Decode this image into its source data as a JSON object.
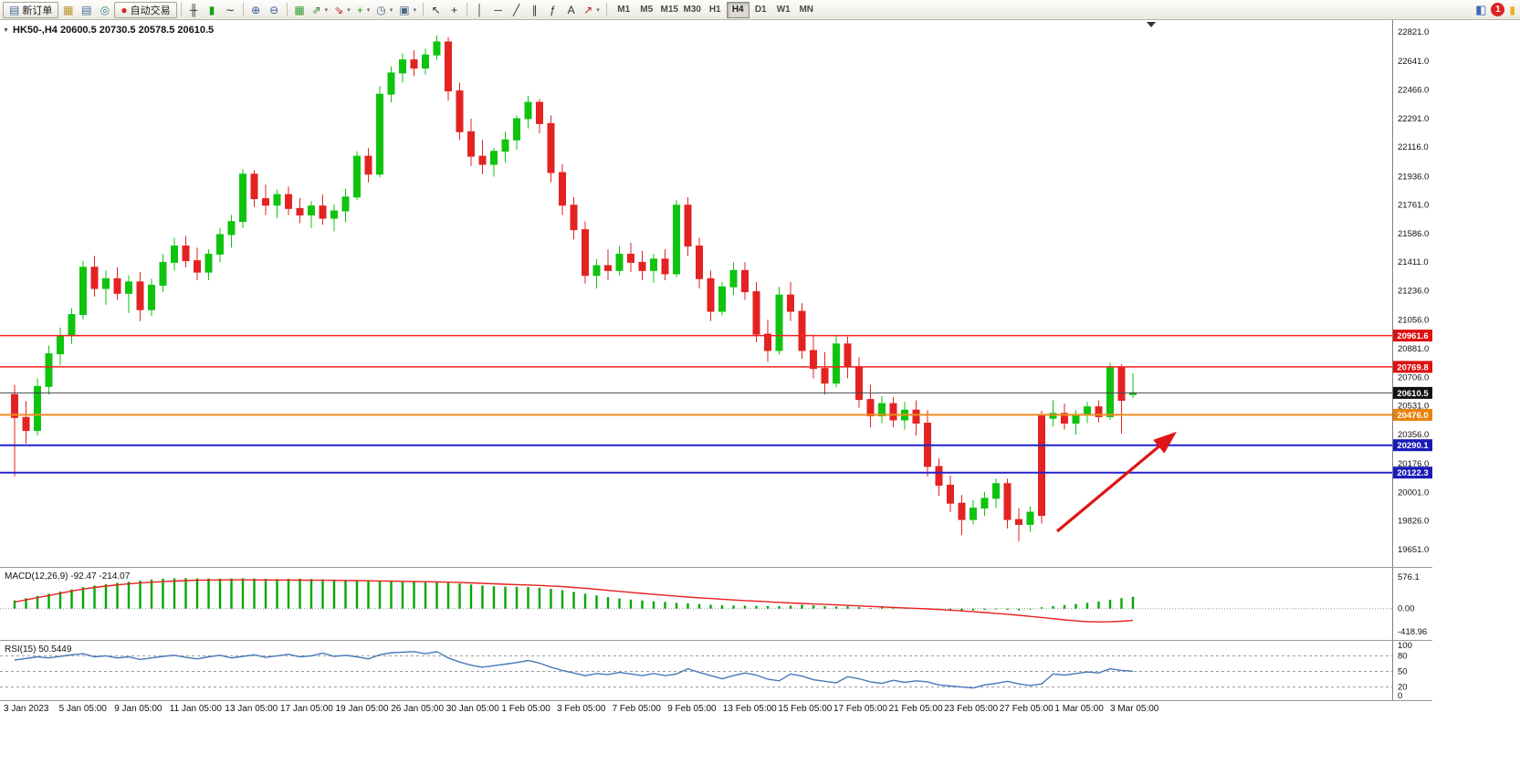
{
  "toolbar": {
    "new_order_label": "新订单",
    "items": [
      {
        "name": "market-watch-icon",
        "glyph": "▦",
        "color": "#b9952c"
      },
      {
        "name": "data-window-icon",
        "glyph": "▤",
        "color": "#44699e"
      },
      {
        "name": "navigator-icon",
        "glyph": "◎",
        "color": "#2e8b8b"
      },
      {
        "name": "autotrade-button",
        "glyph": "●",
        "color": "#d42222",
        "label": "自动交易"
      },
      {
        "sep": true
      },
      {
        "name": "bar-chart-icon",
        "glyph": "╫",
        "color": "#333333"
      },
      {
        "name": "candlestick-chart-icon",
        "glyph": "▮",
        "color": "#18a018"
      },
      {
        "name": "line-chart-icon",
        "glyph": "∼",
        "color": "#333333"
      },
      {
        "sep": true
      },
      {
        "name": "zoom-in-icon",
        "glyph": "⊕",
        "color": "#33589e"
      },
      {
        "name": "zoom-out-icon",
        "glyph": "⊖",
        "color": "#33589e"
      },
      {
        "sep": true
      },
      {
        "name": "tile-windows-icon",
        "glyph": "▦",
        "color": "#2f9e2f"
      },
      {
        "name": "indicator-rise-icon",
        "glyph": "⇗",
        "color": "#1f7a1f",
        "dropdown": true
      },
      {
        "name": "indicator-fall-icon",
        "glyph": "⇘",
        "color": "#b32020",
        "dropdown": true
      },
      {
        "name": "add-indicator-icon",
        "glyph": "+",
        "color": "#18a018",
        "dropdown": true
      },
      {
        "name": "period-icon",
        "glyph": "◷",
        "color": "#4a6a8a",
        "dropdown": true
      },
      {
        "name": "template-icon",
        "glyph": "▣",
        "color": "#4a6a8a",
        "dropdown": true
      },
      {
        "sep": true
      },
      {
        "name": "cursor-icon",
        "glyph": "↖",
        "color": "#333333"
      },
      {
        "name": "crosshair-icon",
        "glyph": "+",
        "color": "#333333"
      },
      {
        "sep": true
      },
      {
        "name": "vertical-line-icon",
        "glyph": "│",
        "color": "#333333"
      },
      {
        "name": "horizontal-line-icon",
        "glyph": "─",
        "color": "#333333"
      },
      {
        "name": "trendline-icon",
        "glyph": "╱",
        "color": "#333333"
      },
      {
        "name": "channel-icon",
        "glyph": "∥",
        "color": "#333333"
      },
      {
        "name": "fibonacci-icon",
        "glyph": "ƒ",
        "color": "#333333"
      },
      {
        "name": "text-icon",
        "glyph": "A",
        "color": "#333333"
      },
      {
        "name": "arrows-icon",
        "glyph": "↗",
        "color": "#b32020",
        "dropdown": true
      },
      {
        "sep": true
      }
    ],
    "timeframes": [
      "M1",
      "M5",
      "M15",
      "M30",
      "H1",
      "H4",
      "D1",
      "W1",
      "MN"
    ],
    "active_timeframe": "H4",
    "notification_count": "1"
  },
  "chart": {
    "header_symbol": "HK50-,H4",
    "header_ohlc": "20600.5 20730.5 20578.5 20610.5",
    "price_axis": [
      "22821.0",
      "22641.0",
      "22466.0",
      "22291.0",
      "22116.0",
      "21936.0",
      "21761.0",
      "21586.0",
      "21411.0",
      "21236.0",
      "21056.0",
      "20881.0",
      "20706.0",
      "20531.0",
      "20356.0",
      "20176.0",
      "20001.0",
      "19826.0",
      "19651.0"
    ],
    "hlines": [
      {
        "price": 20961.6,
        "label": "20961.6",
        "line": "#f42020",
        "badge": "#dd1111",
        "width": 1.5
      },
      {
        "price": 20769.8,
        "label": "20769.8",
        "line": "#f42020",
        "badge": "#dd1111",
        "width": 1.5
      },
      {
        "price": 20610.5,
        "label": "20610.5",
        "line": "#444444",
        "badge": "#111111",
        "width": 1
      },
      {
        "price": 20476.0,
        "label": "20476.0",
        "line": "#f08c1e",
        "badge": "#e8820a",
        "width": 2
      },
      {
        "price": 20290.1,
        "label": "20290.1",
        "line": "#2222cc",
        "badge": "#1a1ab8",
        "width": 2
      },
      {
        "price": 20122.3,
        "label": "20122.3",
        "line": "#2222cc",
        "badge": "#1a1ab8",
        "width": 2
      }
    ],
    "annotations": [
      {
        "type": "arrow",
        "color": "#e01414",
        "from": [
          1158,
          560
        ],
        "to": [
          1284,
          455
        ]
      }
    ]
  },
  "chart_data": {
    "type": "candlestick",
    "symbol": "HK50-",
    "timeframe": "H4",
    "open": 20600.5,
    "high": 20730.5,
    "low": 20578.5,
    "close": 20610.5,
    "up_color": "#0fc40f",
    "down_color": "#e42222",
    "candles": [
      [
        20600,
        20660,
        20100,
        20460
      ],
      [
        20460,
        20560,
        20300,
        20380
      ],
      [
        20380,
        20700,
        20350,
        20650
      ],
      [
        20650,
        20900,
        20600,
        20850
      ],
      [
        20850,
        21010,
        20780,
        20960
      ],
      [
        20960,
        21130,
        20910,
        21090
      ],
      [
        21090,
        21420,
        21060,
        21380
      ],
      [
        21380,
        21450,
        21200,
        21250
      ],
      [
        21250,
        21360,
        21150,
        21310
      ],
      [
        21310,
        21380,
        21180,
        21220
      ],
      [
        21220,
        21330,
        21100,
        21290
      ],
      [
        21290,
        21350,
        21050,
        21120
      ],
      [
        21120,
        21310,
        21080,
        21270
      ],
      [
        21270,
        21460,
        21230,
        21410
      ],
      [
        21410,
        21560,
        21360,
        21510
      ],
      [
        21510,
        21570,
        21380,
        21420
      ],
      [
        21420,
        21500,
        21300,
        21350
      ],
      [
        21350,
        21490,
        21300,
        21460
      ],
      [
        21460,
        21620,
        21410,
        21580
      ],
      [
        21580,
        21700,
        21500,
        21660
      ],
      [
        21660,
        21980,
        21620,
        21950
      ],
      [
        21950,
        21975,
        21750,
        21800
      ],
      [
        21800,
        21885,
        21700,
        21760
      ],
      [
        21760,
        21855,
        21680,
        21825
      ],
      [
        21825,
        21875,
        21700,
        21740
      ],
      [
        21740,
        21805,
        21650,
        21700
      ],
      [
        21700,
        21785,
        21620,
        21755
      ],
      [
        21755,
        21825,
        21640,
        21680
      ],
      [
        21680,
        21765,
        21600,
        21725
      ],
      [
        21725,
        21860,
        21655,
        21810
      ],
      [
        21810,
        22090,
        21790,
        22060
      ],
      [
        22060,
        22110,
        21900,
        21950
      ],
      [
        21950,
        22490,
        21930,
        22440
      ],
      [
        22440,
        22610,
        22390,
        22570
      ],
      [
        22570,
        22690,
        22510,
        22650
      ],
      [
        22650,
        22710,
        22550,
        22600
      ],
      [
        22600,
        22720,
        22560,
        22680
      ],
      [
        22680,
        22800,
        22650,
        22760
      ],
      [
        22760,
        22790,
        22400,
        22460
      ],
      [
        22460,
        22510,
        22160,
        22210
      ],
      [
        22210,
        22290,
        22000,
        22060
      ],
      [
        22060,
        22160,
        21950,
        22010
      ],
      [
        22010,
        22110,
        21935,
        22090
      ],
      [
        22090,
        22210,
        22020,
        22160
      ],
      [
        22160,
        22310,
        22100,
        22290
      ],
      [
        22290,
        22430,
        22230,
        22390
      ],
      [
        22390,
        22410,
        22200,
        22260
      ],
      [
        22260,
        22310,
        21900,
        21960
      ],
      [
        21960,
        22010,
        21700,
        21760
      ],
      [
        21760,
        21810,
        21550,
        21610
      ],
      [
        21610,
        21660,
        21280,
        21330
      ],
      [
        21330,
        21430,
        21250,
        21390
      ],
      [
        21390,
        21490,
        21300,
        21360
      ],
      [
        21360,
        21510,
        21330,
        21460
      ],
      [
        21460,
        21530,
        21350,
        21410
      ],
      [
        21410,
        21480,
        21300,
        21360
      ],
      [
        21360,
        21460,
        21285,
        21430
      ],
      [
        21430,
        21490,
        21300,
        21340
      ],
      [
        21340,
        21790,
        21320,
        21760
      ],
      [
        21760,
        21810,
        21450,
        21510
      ],
      [
        21510,
        21560,
        21250,
        21310
      ],
      [
        21310,
        21360,
        21050,
        21110
      ],
      [
        21110,
        21290,
        21085,
        21260
      ],
      [
        21260,
        21410,
        21210,
        21360
      ],
      [
        21360,
        21410,
        21180,
        21230
      ],
      [
        21230,
        21290,
        20920,
        20970
      ],
      [
        20970,
        21060,
        20800,
        20870
      ],
      [
        20870,
        21260,
        20845,
        21210
      ],
      [
        21210,
        21290,
        21050,
        21110
      ],
      [
        21110,
        21160,
        20820,
        20870
      ],
      [
        20870,
        20960,
        20700,
        20760
      ],
      [
        20760,
        20860,
        20600,
        20670
      ],
      [
        20670,
        20960,
        20645,
        20910
      ],
      [
        20910,
        20955,
        20700,
        20770
      ],
      [
        20770,
        20830,
        20520,
        20570
      ],
      [
        20570,
        20660,
        20400,
        20470
      ],
      [
        20470,
        20590,
        20425,
        20545
      ],
      [
        20545,
        20585,
        20400,
        20445
      ],
      [
        20445,
        20555,
        20385,
        20505
      ],
      [
        20505,
        20565,
        20350,
        20425
      ],
      [
        20425,
        20505,
        20100,
        20160
      ],
      [
        20160,
        20210,
        19980,
        20045
      ],
      [
        20045,
        20105,
        19880,
        19935
      ],
      [
        19935,
        19985,
        19740,
        19835
      ],
      [
        19835,
        19955,
        19805,
        19905
      ],
      [
        19905,
        20005,
        19855,
        19965
      ],
      [
        19965,
        20085,
        19905,
        20055
      ],
      [
        20055,
        20085,
        19780,
        19835
      ],
      [
        19835,
        19905,
        19700,
        19805
      ],
      [
        19805,
        19915,
        19760,
        19880
      ],
      [
        20470,
        20500,
        19810,
        19860
      ],
      [
        20455,
        20565,
        20405,
        20485
      ],
      [
        20485,
        20545,
        20385,
        20425
      ],
      [
        20425,
        20505,
        20355,
        20475
      ],
      [
        20475,
        20555,
        20425,
        20525
      ],
      [
        20525,
        20565,
        20430,
        20465
      ],
      [
        20465,
        20795,
        20445,
        20765
      ],
      [
        20765,
        20785,
        20360,
        20565
      ],
      [
        20600.5,
        20730.5,
        20578.5,
        20610.5
      ]
    ]
  },
  "macd": {
    "label": "MACD(12,26,9)",
    "values": "-92.47 -214.07",
    "axis": [
      {
        "v": 576.1,
        "label": "576.1"
      },
      {
        "v": 0,
        "label": "0.00"
      },
      {
        "v": -418.96,
        "label": "-418.96"
      }
    ],
    "hist_color": "#00a800",
    "signal_color": "#e82020",
    "histogram": [
      150,
      190,
      230,
      270,
      310,
      350,
      390,
      420,
      445,
      470,
      490,
      510,
      530,
      545,
      552,
      555,
      552,
      548,
      545,
      548,
      552,
      548,
      542,
      538,
      540,
      545,
      538,
      532,
      528,
      524,
      518,
      512,
      508,
      504,
      500,
      494,
      488,
      480,
      470,
      455,
      438,
      420,
      408,
      400,
      396,
      392,
      380,
      360,
      335,
      305,
      272,
      240,
      210,
      185,
      165,
      150,
      135,
      120,
      105,
      95,
      85,
      70,
      62,
      58,
      55,
      52,
      48,
      45,
      55,
      70,
      60,
      45,
      38,
      42,
      30,
      12,
      22,
      32,
      20,
      5,
      -12,
      -22,
      -30,
      -38,
      -30,
      -22,
      -12,
      -20,
      -30,
      -15,
      25,
      45,
      65,
      85,
      105,
      130,
      160,
      190,
      215
    ],
    "signal": [
      120,
      160,
      200,
      240,
      280,
      320,
      355,
      385,
      410,
      432,
      450,
      466,
      480,
      492,
      502,
      510,
      516,
      520,
      522,
      523,
      523,
      522,
      521,
      520,
      519,
      518,
      517,
      516,
      514,
      512,
      509,
      506,
      503,
      500,
      497,
      494,
      490,
      486,
      481,
      475,
      468,
      460,
      452,
      444,
      437,
      430,
      422,
      412,
      400,
      386,
      370,
      352,
      333,
      314,
      295,
      277,
      259,
      242,
      226,
      211,
      197,
      184,
      171,
      159,
      147,
      136,
      125,
      114,
      104,
      95,
      86,
      77,
      68,
      59,
      50,
      41,
      32,
      23,
      14,
      5,
      -5,
      -16,
      -28,
      -41,
      -55,
      -70,
      -86,
      -103,
      -121,
      -140,
      -160,
      -182,
      -204,
      -222,
      -236,
      -242,
      -238,
      -228,
      -214
    ]
  },
  "rsi": {
    "label": "RSI(15)",
    "value": "50.5449",
    "axis": [
      {
        "v": 100,
        "label": "100"
      },
      {
        "v": 80,
        "label": "80",
        "dashed": true
      },
      {
        "v": 50,
        "label": "50",
        "dashed": true
      },
      {
        "v": 20,
        "label": "20",
        "dashed": true
      },
      {
        "v": 0,
        "label": "0"
      }
    ],
    "line_color": "#4878b8",
    "values": [
      72,
      75,
      78,
      76,
      79,
      82,
      84,
      78,
      80,
      76,
      78,
      73,
      76,
      79,
      81,
      77,
      74,
      78,
      81,
      76,
      79,
      82,
      77,
      80,
      83,
      78,
      80,
      85,
      79,
      81,
      78,
      74,
      82,
      86,
      87,
      88,
      84,
      88,
      76,
      68,
      62,
      58,
      61,
      64,
      67,
      71,
      66,
      58,
      52,
      47,
      42,
      46,
      44,
      48,
      45,
      42,
      46,
      42,
      45,
      55,
      48,
      42,
      36,
      42,
      47,
      43,
      35,
      32,
      45,
      41,
      34,
      31,
      28,
      40,
      36,
      30,
      27,
      33,
      29,
      32,
      30,
      24,
      22,
      20,
      18,
      24,
      27,
      31,
      26,
      23,
      26,
      45,
      43,
      46,
      49,
      47,
      55,
      52,
      50.5
    ]
  },
  "time_axis": [
    "3 Jan 2023",
    "5 Jan 05:00",
    "9 Jan 05:00",
    "11 Jan 05:00",
    "13 Jan 05:00",
    "17 Jan 05:00",
    "19 Jan 05:00",
    "26 Jan 05:00",
    "30 Jan 05:00",
    "1 Feb 05:00",
    "3 Feb 05:00",
    "7 Feb 05:00",
    "9 Feb 05:00",
    "13 Feb 05:00",
    "15 Feb 05:00",
    "17 Feb 05:00",
    "21 Feb 05:00",
    "23 Feb 05:00",
    "27 Feb 05:00",
    "1 Mar 05:00",
    "3 Mar 05:00"
  ]
}
